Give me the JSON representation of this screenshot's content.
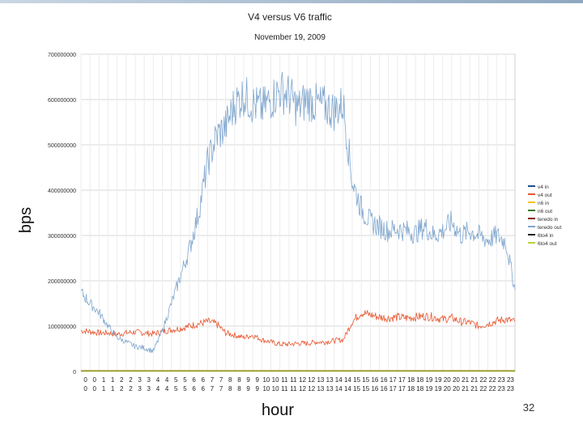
{
  "slide": {
    "page_number": "32"
  },
  "chart_data": {
    "type": "line",
    "title": "V4 versus V6 traffic",
    "subtitle": "November 19, 2009",
    "xlabel": "hour",
    "ylabel": "bps",
    "ylim": [
      0,
      700000000
    ],
    "yticks": [
      0,
      100000000,
      200000000,
      300000000,
      400000000,
      500000000,
      600000000,
      700000000
    ],
    "ytick_labels": [
      "0",
      "100000000",
      "200000000",
      "300000000",
      "400000000",
      "500000000",
      "600000000",
      "700000000"
    ],
    "xlim": [
      0,
      24
    ],
    "xtick_labels_row1": [
      "0",
      "0",
      "1",
      "1",
      "2",
      "2",
      "3",
      "3",
      "4",
      "4",
      "5",
      "5",
      "6",
      "6",
      "7",
      "7",
      "8",
      "8",
      "9",
      "9",
      "10",
      "10",
      "11",
      "11",
      "12",
      "12",
      "13",
      "13",
      "14",
      "14",
      "15",
      "15",
      "16",
      "16",
      "17",
      "17",
      "18",
      "18",
      "19",
      "19",
      "20",
      "20",
      "21",
      "21",
      "22",
      "22",
      "23",
      "23"
    ],
    "xtick_labels_row2": [
      "0",
      "0",
      "1",
      "1",
      "2",
      "2",
      "3",
      "3",
      "4",
      "4",
      "5",
      "5",
      "6",
      "6",
      "7",
      "7",
      "8",
      "8",
      "9",
      "9",
      "10",
      "10",
      "11",
      "11",
      "12",
      "12",
      "13",
      "13",
      "14",
      "14",
      "15",
      "15",
      "16",
      "16",
      "17",
      "17",
      "18",
      "18",
      "19",
      "19",
      "20",
      "20",
      "21",
      "21",
      "22",
      "22",
      "23",
      "23"
    ],
    "grid": true,
    "legend_position": "right",
    "series": [
      {
        "name": "v4 in",
        "color": "#1f4e8c",
        "x": [],
        "y": []
      },
      {
        "name": "v4 out",
        "color": "#e8562f",
        "x": [
          0,
          0.5,
          1,
          1.5,
          2,
          2.5,
          3,
          3.5,
          4,
          4.5,
          5,
          5.5,
          6,
          6.5,
          7,
          7.5,
          8,
          8.5,
          9,
          9.5,
          10,
          10.5,
          11,
          11.5,
          12,
          12.5,
          13,
          13.5,
          14,
          14.5,
          15,
          15.5,
          16,
          16.5,
          17,
          17.5,
          18,
          18.5,
          19,
          19.5,
          20,
          20.5,
          21,
          21.5,
          22,
          22.5,
          23,
          23.5,
          24
        ],
        "y": [
          90000000,
          88000000,
          85000000,
          85000000,
          82000000,
          85000000,
          87000000,
          85000000,
          83000000,
          88000000,
          92000000,
          95000000,
          100000000,
          105000000,
          110000000,
          105000000,
          85000000,
          80000000,
          75000000,
          80000000,
          70000000,
          65000000,
          60000000,
          60000000,
          62000000,
          62000000,
          65000000,
          65000000,
          68000000,
          70000000,
          110000000,
          130000000,
          125000000,
          120000000,
          118000000,
          120000000,
          118000000,
          120000000,
          122000000,
          120000000,
          115000000,
          118000000,
          110000000,
          108000000,
          100000000,
          105000000,
          112000000,
          115000000,
          110000000
        ]
      },
      {
        "name": "n6 in",
        "color": "#f0c419",
        "x": [
          0,
          24
        ],
        "y": [
          2000000,
          2000000
        ]
      },
      {
        "name": "n6 out",
        "color": "#3a7d2c",
        "x": [
          0,
          24
        ],
        "y": [
          1500000,
          1500000
        ]
      },
      {
        "name": "teredo in",
        "color": "#8b1a1a",
        "x": [
          0,
          24
        ],
        "y": [
          1000000,
          1000000
        ]
      },
      {
        "name": "teredo out",
        "color": "#7fa6cf",
        "x": [
          0,
          0.5,
          1,
          1.5,
          2,
          2.5,
          3,
          3.5,
          4,
          4.5,
          5,
          5.5,
          6,
          6.5,
          7,
          7.5,
          8,
          8.5,
          9,
          9.5,
          10,
          10.5,
          11,
          11.5,
          12,
          12.5,
          13,
          13.5,
          14,
          14.5,
          15,
          15.5,
          16,
          16.5,
          17,
          17.5,
          18,
          18.5,
          19,
          19.5,
          20,
          20.5,
          21,
          21.5,
          22,
          22.5,
          23,
          23.5,
          24
        ],
        "y": [
          175000000,
          150000000,
          130000000,
          100000000,
          75000000,
          65000000,
          55000000,
          52000000,
          45000000,
          90000000,
          150000000,
          210000000,
          270000000,
          350000000,
          460000000,
          520000000,
          540000000,
          590000000,
          610000000,
          590000000,
          580000000,
          600000000,
          620000000,
          610000000,
          580000000,
          600000000,
          590000000,
          585000000,
          575000000,
          590000000,
          420000000,
          360000000,
          330000000,
          320000000,
          310000000,
          315000000,
          310000000,
          305000000,
          320000000,
          300000000,
          310000000,
          330000000,
          300000000,
          310000000,
          300000000,
          290000000,
          300000000,
          285000000,
          180000000
        ]
      },
      {
        "name": "6to4 in",
        "color": "#222222",
        "x": [
          0,
          24
        ],
        "y": [
          800000,
          800000
        ]
      },
      {
        "name": "6to4 out",
        "color": "#b5d334",
        "x": [
          0,
          24
        ],
        "y": [
          600000,
          600000
        ]
      }
    ]
  }
}
